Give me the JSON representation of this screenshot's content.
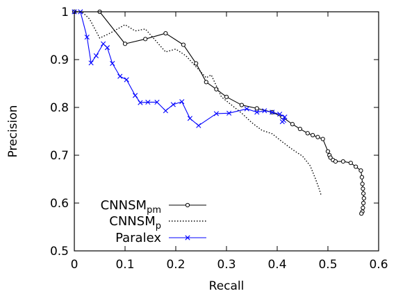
{
  "chart_data": {
    "type": "line",
    "title": "",
    "xlabel": "Recall",
    "ylabel": "Precision",
    "xlim": [
      0,
      0.6
    ],
    "ylim": [
      0.5,
      1.0
    ],
    "xticks": [
      0,
      0.1,
      0.2,
      0.3,
      0.4,
      0.5,
      0.6
    ],
    "xtick_labels": [
      "0",
      "0.1",
      "0.2",
      "0.3",
      "0.4",
      "0.5",
      "0.6"
    ],
    "yticks": [
      0.5,
      0.6,
      0.7,
      0.8,
      0.9,
      1.0
    ],
    "ytick_labels": [
      "0.5",
      "0.6",
      "0.7",
      "0.8",
      "0.9",
      "1"
    ],
    "grid": false,
    "legend_position": "bottom-left",
    "series": [
      {
        "name_main": "CNNSM",
        "name_sub": "pm",
        "color": "#000000",
        "line_style": "solid",
        "marker": "circle",
        "x": [
          0.0,
          0.05,
          0.1,
          0.14,
          0.18,
          0.215,
          0.24,
          0.26,
          0.28,
          0.3,
          0.33,
          0.36,
          0.39,
          0.41,
          0.43,
          0.445,
          0.46,
          0.47,
          0.48,
          0.49,
          0.5,
          0.503,
          0.505,
          0.51,
          0.515,
          0.53,
          0.545,
          0.555,
          0.565,
          0.567,
          0.568,
          0.569,
          0.57,
          0.571,
          0.57,
          0.569,
          0.568,
          0.566
        ],
        "y": [
          1.0,
          1.0,
          0.933,
          0.943,
          0.955,
          0.931,
          0.892,
          0.853,
          0.838,
          0.822,
          0.805,
          0.798,
          0.79,
          0.78,
          0.765,
          0.755,
          0.746,
          0.742,
          0.738,
          0.734,
          0.708,
          0.7,
          0.695,
          0.69,
          0.687,
          0.687,
          0.684,
          0.676,
          0.668,
          0.654,
          0.64,
          0.63,
          0.62,
          0.61,
          0.6,
          0.59,
          0.582,
          0.578
        ]
      },
      {
        "name_main": "CNNSM",
        "name_sub": "p",
        "color": "#000000",
        "line_style": "dotted",
        "marker": "none",
        "x": [
          0.0,
          0.015,
          0.03,
          0.05,
          0.07,
          0.09,
          0.1,
          0.12,
          0.14,
          0.16,
          0.18,
          0.2,
          0.22,
          0.24,
          0.26,
          0.27,
          0.29,
          0.31,
          0.33,
          0.35,
          0.37,
          0.39,
          0.41,
          0.43,
          0.45,
          0.465,
          0.475,
          0.482,
          0.487
        ],
        "y": [
          1.0,
          1.0,
          0.985,
          0.945,
          0.955,
          0.967,
          0.973,
          0.96,
          0.964,
          0.94,
          0.916,
          0.922,
          0.908,
          0.885,
          0.862,
          0.868,
          0.822,
          0.805,
          0.788,
          0.768,
          0.752,
          0.745,
          0.728,
          0.712,
          0.698,
          0.678,
          0.652,
          0.632,
          0.615
        ]
      },
      {
        "name_main": "Paralex",
        "name_sub": "",
        "color": "#0000ff",
        "line_style": "solid",
        "marker": "x",
        "x": [
          0.0,
          0.012,
          0.025,
          0.033,
          0.043,
          0.057,
          0.065,
          0.075,
          0.09,
          0.103,
          0.12,
          0.13,
          0.145,
          0.163,
          0.18,
          0.195,
          0.212,
          0.228,
          0.245,
          0.28,
          0.305,
          0.34,
          0.36,
          0.375,
          0.39,
          0.405,
          0.415,
          0.413,
          0.41
        ],
        "y": [
          1.0,
          1.0,
          0.947,
          0.893,
          0.908,
          0.933,
          0.925,
          0.892,
          0.865,
          0.858,
          0.825,
          0.81,
          0.811,
          0.811,
          0.793,
          0.806,
          0.812,
          0.777,
          0.762,
          0.787,
          0.788,
          0.797,
          0.79,
          0.793,
          0.79,
          0.786,
          0.78,
          0.773,
          0.77
        ]
      }
    ]
  }
}
